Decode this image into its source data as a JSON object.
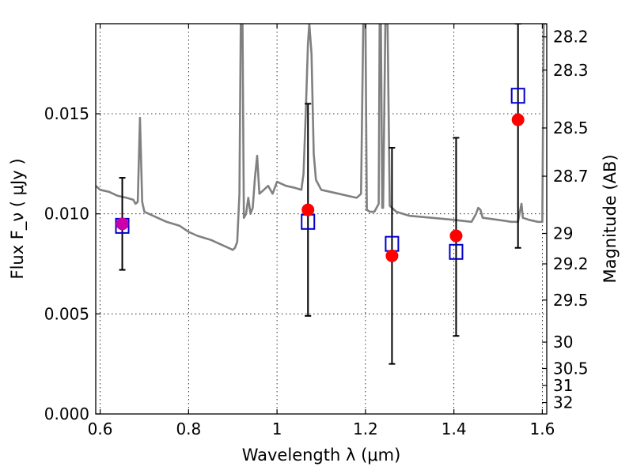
{
  "chart_data": {
    "type": "scatter",
    "xlabel": "Wavelength  λ (μm)",
    "ylabel": "Flux  F_ν  ( μJy )",
    "y2label": "Magnitude (AB)",
    "xlim": [
      0.59,
      1.61
    ],
    "ylim": [
      0.0,
      0.0195
    ],
    "grid": true,
    "x_ticks": [
      0.6,
      0.8,
      1.0,
      1.2,
      1.4,
      1.6
    ],
    "x_tick_labels": [
      "0.6",
      "0.8",
      "1",
      "1.2",
      "1.4",
      "1.6"
    ],
    "y_ticks": [
      0.0,
      0.005,
      0.01,
      0.015
    ],
    "y_tick_labels": [
      "0.000",
      "0.005",
      "0.010",
      "0.015"
    ],
    "magnitude_ticks": [
      {
        "label": "28.2",
        "flux": 0.01884
      },
      {
        "label": "28.3",
        "flux": 0.01718
      },
      {
        "label": "28.5",
        "flux": 0.01429
      },
      {
        "label": "28.7",
        "flux": 0.01188
      },
      {
        "label": "29",
        "flux": 0.00902
      },
      {
        "label": "29.2",
        "flux": 0.0075
      },
      {
        "label": "29.5",
        "flux": 0.00569
      },
      {
        "label": "30",
        "flux": 0.00359
      },
      {
        "label": "30.5",
        "flux": 0.00227
      },
      {
        "label": "31",
        "flux": 0.00143
      },
      {
        "label": "32",
        "flux": 0.00057
      }
    ],
    "colors": {
      "observed": "#ff0000",
      "model": "#0000cc",
      "spectrum": "#808080",
      "errorbar": "#000000"
    },
    "observed_points": [
      {
        "x": 0.65,
        "y": 0.0095,
        "err_low": 0.0072,
        "err_high": 0.0118
      },
      {
        "x": 1.07,
        "y": 0.0102,
        "err_low": 0.0049,
        "err_high": 0.0155
      },
      {
        "x": 1.26,
        "y": 0.0079,
        "err_low": 0.0025,
        "err_high": 0.0133
      },
      {
        "x": 1.405,
        "y": 0.0089,
        "err_low": 0.0039,
        "err_high": 0.0138
      },
      {
        "x": 1.545,
        "y": 0.0147,
        "err_low": 0.0083,
        "err_high": 0.0195
      }
    ],
    "model_points": [
      {
        "x": 0.65,
        "y": 0.0094
      },
      {
        "x": 1.07,
        "y": 0.0096
      },
      {
        "x": 1.26,
        "y": 0.0085
      },
      {
        "x": 1.405,
        "y": 0.0081
      },
      {
        "x": 1.545,
        "y": 0.0159
      }
    ],
    "spectrum": [
      [
        0.59,
        0.0114
      ],
      [
        0.6,
        0.0112
      ],
      [
        0.62,
        0.0111
      ],
      [
        0.64,
        0.0109
      ],
      [
        0.66,
        0.0108
      ],
      [
        0.675,
        0.0107
      ],
      [
        0.68,
        0.0105
      ],
      [
        0.685,
        0.0106
      ],
      [
        0.69,
        0.0148
      ],
      [
        0.695,
        0.0106
      ],
      [
        0.7,
        0.0101
      ],
      [
        0.72,
        0.0099
      ],
      [
        0.75,
        0.0096
      ],
      [
        0.78,
        0.0094
      ],
      [
        0.8,
        0.0091
      ],
      [
        0.82,
        0.0089
      ],
      [
        0.85,
        0.0087
      ],
      [
        0.87,
        0.0085
      ],
      [
        0.89,
        0.0083
      ],
      [
        0.9,
        0.0082
      ],
      [
        0.905,
        0.0083
      ],
      [
        0.91,
        0.0086
      ],
      [
        0.915,
        0.011
      ],
      [
        0.918,
        0.0195
      ],
      [
        0.922,
        0.0195
      ],
      [
        0.925,
        0.0098
      ],
      [
        0.93,
        0.01
      ],
      [
        0.935,
        0.0108
      ],
      [
        0.94,
        0.01
      ],
      [
        0.945,
        0.0103
      ],
      [
        0.95,
        0.0118
      ],
      [
        0.955,
        0.0129
      ],
      [
        0.96,
        0.011
      ],
      [
        0.97,
        0.0112
      ],
      [
        0.98,
        0.0114
      ],
      [
        0.99,
        0.011
      ],
      [
        1.0,
        0.0116
      ],
      [
        1.02,
        0.0114
      ],
      [
        1.04,
        0.0113
      ],
      [
        1.055,
        0.0112
      ],
      [
        1.06,
        0.012
      ],
      [
        1.065,
        0.015
      ],
      [
        1.07,
        0.0185
      ],
      [
        1.073,
        0.0195
      ],
      [
        1.078,
        0.018
      ],
      [
        1.083,
        0.013
      ],
      [
        1.088,
        0.0117
      ],
      [
        1.1,
        0.0112
      ],
      [
        1.12,
        0.0111
      ],
      [
        1.14,
        0.011
      ],
      [
        1.16,
        0.0109
      ],
      [
        1.18,
        0.0108
      ],
      [
        1.19,
        0.011
      ],
      [
        1.195,
        0.0195
      ],
      [
        1.2,
        0.0195
      ],
      [
        1.203,
        0.0102
      ],
      [
        1.21,
        0.0101
      ],
      [
        1.22,
        0.0101
      ],
      [
        1.23,
        0.0105
      ],
      [
        1.232,
        0.0195
      ],
      [
        1.235,
        0.0195
      ],
      [
        1.238,
        0.0103
      ],
      [
        1.24,
        0.0103
      ],
      [
        1.245,
        0.0195
      ],
      [
        1.25,
        0.0195
      ],
      [
        1.255,
        0.0104
      ],
      [
        1.27,
        0.0101
      ],
      [
        1.3,
        0.0099
      ],
      [
        1.35,
        0.0098
      ],
      [
        1.4,
        0.0097
      ],
      [
        1.44,
        0.0096
      ],
      [
        1.45,
        0.01
      ],
      [
        1.455,
        0.0103
      ],
      [
        1.46,
        0.0102
      ],
      [
        1.465,
        0.0098
      ],
      [
        1.5,
        0.0097
      ],
      [
        1.53,
        0.0096
      ],
      [
        1.545,
        0.0096
      ],
      [
        1.55,
        0.0102
      ],
      [
        1.553,
        0.0105
      ],
      [
        1.556,
        0.0098
      ],
      [
        1.57,
        0.0097
      ],
      [
        1.59,
        0.0096
      ],
      [
        1.6,
        0.0096
      ],
      [
        1.603,
        0.0195
      ],
      [
        1.61,
        0.0195
      ]
    ]
  }
}
